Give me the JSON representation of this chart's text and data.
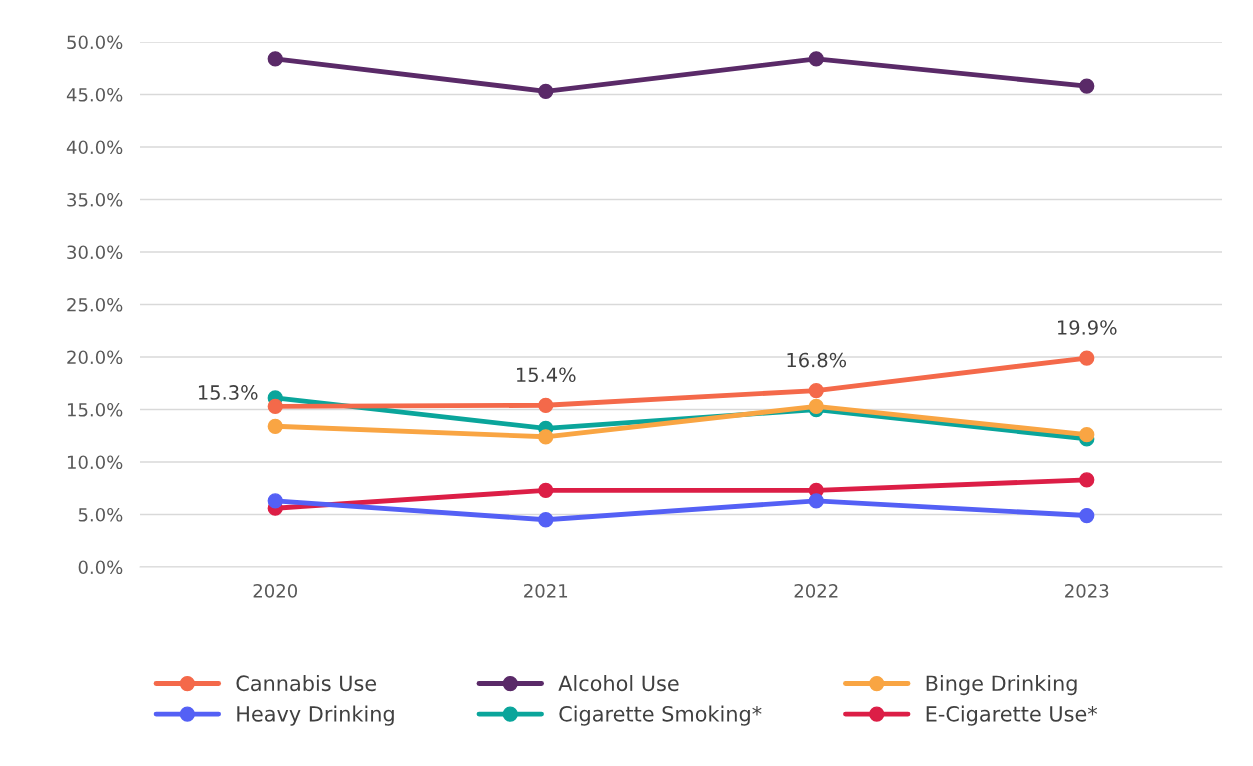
{
  "chart_data": {
    "type": "line",
    "categories": [
      "2020",
      "2021",
      "2022",
      "2023"
    ],
    "series": [
      {
        "name": "Cannabis Use",
        "color": "#f4694a",
        "values": [
          15.3,
          15.4,
          16.8,
          19.9
        ],
        "value_labels": [
          "15.3%",
          "15.4%",
          "16.8%",
          "19.9%"
        ]
      },
      {
        "name": "Alcohol Use",
        "color": "#5a2a68",
        "values": [
          48.4,
          45.3,
          48.4,
          45.8
        ]
      },
      {
        "name": "Binge Drinking",
        "color": "#f9a543",
        "values": [
          13.4,
          12.4,
          15.3,
          12.6
        ]
      },
      {
        "name": "Heavy Drinking",
        "color": "#5460f5",
        "values": [
          6.3,
          4.5,
          6.3,
          4.9
        ]
      },
      {
        "name": "Cigarette Smoking*",
        "color": "#0aa59b",
        "values": [
          16.1,
          13.2,
          15.0,
          12.2
        ]
      },
      {
        "name": "E-Cigarette Use*",
        "color": "#dc1e46",
        "values": [
          5.6,
          7.3,
          7.3,
          8.3
        ]
      }
    ],
    "ylim": [
      0,
      50
    ],
    "yticks": [
      {
        "value": 0,
        "label": "0.0%"
      },
      {
        "value": 5,
        "label": "5.0%"
      },
      {
        "value": 10,
        "label": "10.0%"
      },
      {
        "value": 15,
        "label": "15.0%"
      },
      {
        "value": 20,
        "label": "20.0%"
      },
      {
        "value": 25,
        "label": "25.0%"
      },
      {
        "value": 30,
        "label": "30.0%"
      },
      {
        "value": 35,
        "label": "35.0%"
      },
      {
        "value": 40,
        "label": "40.0%"
      },
      {
        "value": 45,
        "label": "45.0%"
      },
      {
        "value": 50,
        "label": "50.0%"
      }
    ],
    "grid": "y",
    "legend": "bottom",
    "marker": "circle",
    "line_style": "solid"
  }
}
